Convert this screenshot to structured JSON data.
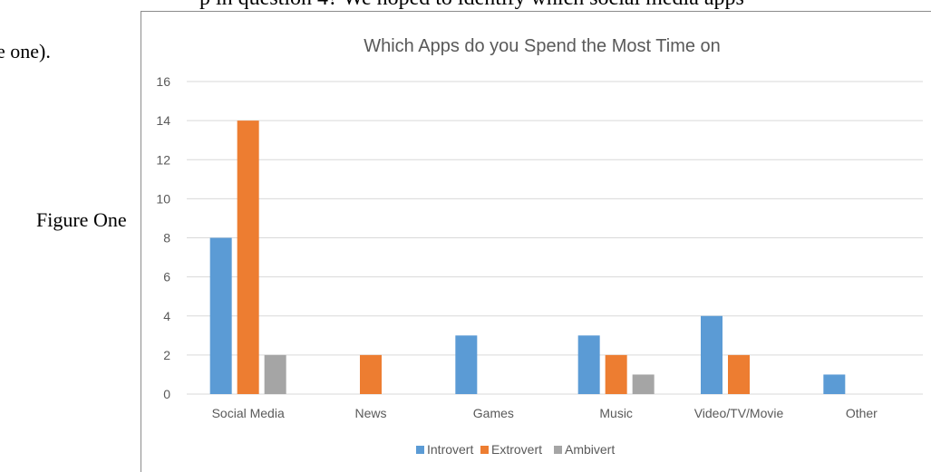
{
  "document": {
    "top_line": "p in question 4? We hoped to identify which social media apps",
    "left_line": "e one).",
    "figure_label": "Figure One"
  },
  "colors": {
    "Introvert": "#5b9bd5",
    "Extrovert": "#ed7d31",
    "Ambivert": "#a5a5a5",
    "gridline": "#d9d9d9",
    "axis_text": "#595959",
    "title_text": "#595959"
  },
  "chart_data": {
    "type": "bar",
    "title": "Which Apps do you Spend the Most Time on",
    "xlabel": "",
    "ylabel": "",
    "categories": [
      "Social Media",
      "News",
      "Games",
      "Music",
      "Video/TV/Movie",
      "Other"
    ],
    "series": [
      {
        "name": "Introvert",
        "values": [
          8,
          0,
          3,
          3,
          4,
          1
        ]
      },
      {
        "name": "Extrovert",
        "values": [
          14,
          2,
          0,
          2,
          2,
          0
        ]
      },
      {
        "name": "Ambivert",
        "values": [
          2,
          0,
          0,
          1,
          0,
          0
        ]
      }
    ],
    "ylim": [
      0,
      16
    ],
    "yticks": [
      "0",
      "2",
      "4",
      "6",
      "8",
      "10",
      "12",
      "14",
      "16"
    ],
    "grid": true,
    "legend_position": "bottom"
  }
}
